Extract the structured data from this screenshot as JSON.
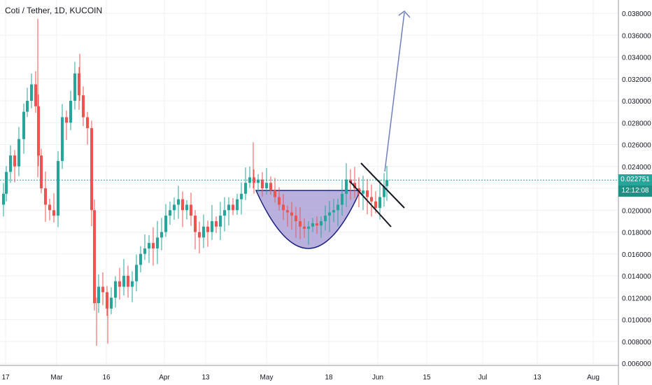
{
  "header": {
    "title": "Coti / Tether, 1D, KUCOIN"
  },
  "colors": {
    "up": "#26a69a",
    "down": "#ef5350",
    "grid": "#eef0f4",
    "axis_text": "#131722",
    "drawing": "#6f7fbf",
    "cup_fill": "#9b8fd0",
    "last_price_line": "#26a69a"
  },
  "price_axis": {
    "ticks": [
      "0.038000",
      "0.036000",
      "0.034000",
      "0.032000",
      "0.030000",
      "0.028000",
      "0.026000",
      "0.024000",
      "0.022000",
      "0.020000",
      "0.018000",
      "0.016000",
      "0.014000",
      "0.012000",
      "0.010000",
      "0.008000",
      "0.006000"
    ],
    "last_price": "0.022751",
    "countdown": "12:12:08"
  },
  "time_axis": {
    "ticks": [
      "17",
      "Mar",
      "16",
      "Apr",
      "13",
      "May",
      "18",
      "Jun",
      "15",
      "Jul",
      "13",
      "Aug"
    ]
  },
  "chart_data": {
    "type": "candlestick",
    "title": "Coti / Tether, 1D, KUCOIN",
    "ylim": [
      0.006,
      0.0395
    ],
    "xlim_days": [
      "Feb 17",
      "Aug 12"
    ],
    "x": [
      "Feb 17",
      "Feb 24",
      "Mar 2",
      "Mar 9",
      "Mar 16",
      "Mar 23",
      "Mar 30",
      "Apr 6",
      "Apr 13",
      "Apr 20",
      "Apr 27",
      "May 4",
      "May 11",
      "May 18",
      "May 25",
      "Jun 1",
      "Jun 4"
    ],
    "close_approx": [
      0.0225,
      0.0305,
      0.0215,
      0.031,
      0.0115,
      0.0135,
      0.017,
      0.02,
      0.0185,
      0.0205,
      0.023,
      0.0205,
      0.0185,
      0.0195,
      0.0225,
      0.021,
      0.02275
    ],
    "annotations": [
      {
        "type": "cup",
        "from": "Apr 27",
        "to": "May 24",
        "rim": 0.0218,
        "bottom": 0.0165
      },
      {
        "type": "descending_channel",
        "from": "May 24",
        "to": "Jun 6"
      },
      {
        "type": "target_arrow",
        "from_price": 0.0235,
        "to_price": 0.0385
      }
    ]
  }
}
